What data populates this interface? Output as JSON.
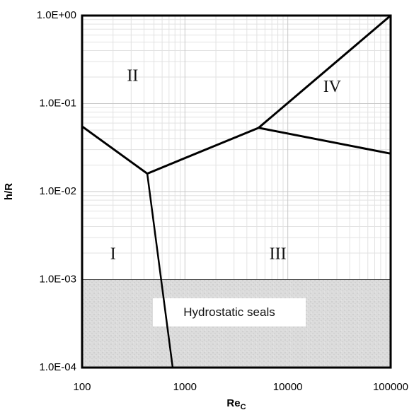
{
  "chart_data": {
    "type": "line",
    "title": "",
    "xlabel": "Re",
    "xlabel_sub": "C",
    "ylabel": "h/R",
    "x_scale": "log",
    "y_scale": "log",
    "xlim": [
      100,
      100000
    ],
    "ylim": [
      0.0001,
      1
    ],
    "grid": true,
    "x_ticks": [
      {
        "value": 100,
        "label": "100"
      },
      {
        "value": 1000,
        "label": "1000"
      },
      {
        "value": 10000,
        "label": "10000"
      },
      {
        "value": 100000,
        "label": "100000"
      }
    ],
    "y_ticks": [
      {
        "value": 0.0001,
        "label": "1.0E-04"
      },
      {
        "value": 0.001,
        "label": "1.0E-03"
      },
      {
        "value": 0.01,
        "label": "1.0E-02"
      },
      {
        "value": 0.1,
        "label": "1.0E-01"
      },
      {
        "value": 1,
        "label": "1.0E+00"
      }
    ],
    "boundaries": [
      {
        "x": [
          100,
          430
        ],
        "y": [
          0.055,
          0.016
        ]
      },
      {
        "x": [
          430,
          5200
        ],
        "y": [
          0.016,
          0.053
        ]
      },
      {
        "x": [
          5200,
          100000
        ],
        "y": [
          0.053,
          1.0
        ]
      },
      {
        "x": [
          5200,
          100000
        ],
        "y": [
          0.053,
          0.027
        ]
      },
      {
        "x": [
          430,
          760
        ],
        "y": [
          0.016,
          0.0001
        ]
      }
    ],
    "shaded_region": {
      "label": "Hydrostatic seals",
      "x": [
        100,
        100000
      ],
      "y": [
        0.0001,
        0.001
      ],
      "color": "#d9d9d9"
    },
    "regions": [
      {
        "label": "I",
        "x": 200,
        "y": 0.0019
      },
      {
        "label": "II",
        "x": 310,
        "y": 0.2
      },
      {
        "label": "III",
        "x": 8000,
        "y": 0.0019
      },
      {
        "label": "IV",
        "x": 27000,
        "y": 0.15
      }
    ]
  }
}
